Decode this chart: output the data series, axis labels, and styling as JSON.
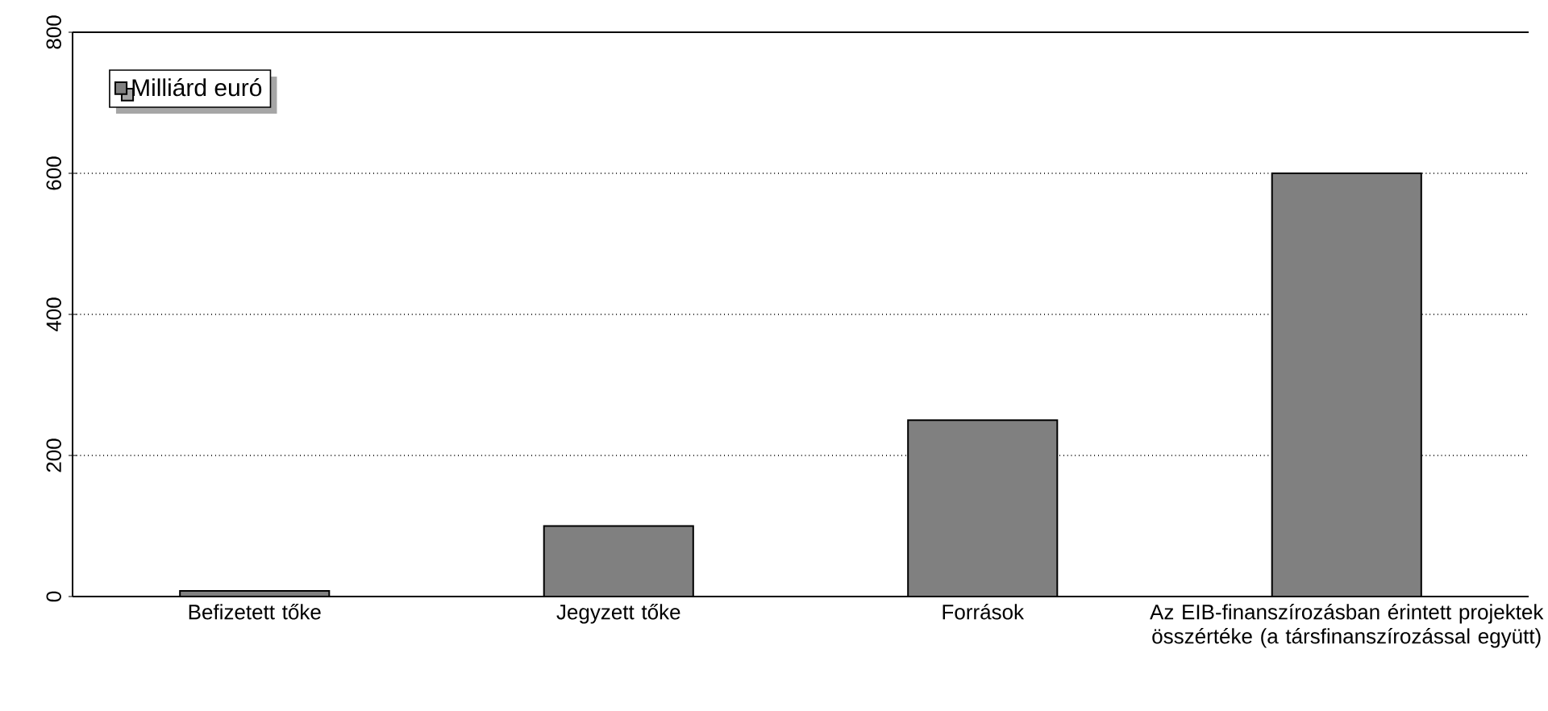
{
  "chart_data": {
    "type": "bar",
    "categories": [
      "Befizetett tőke",
      "Jegyzett tőke",
      "Források",
      "Az EIB-finanszírozásban érintett projektek összértéke (a társfinanszírozással együtt)"
    ],
    "series": [
      {
        "name": "Milliárd euró",
        "color": "#808080",
        "values": [
          8,
          100,
          250,
          600
        ]
      }
    ],
    "ylim": [
      0,
      800
    ],
    "yticks": [
      0,
      200,
      400,
      600,
      800
    ],
    "grid": "y",
    "legend": "top left"
  }
}
